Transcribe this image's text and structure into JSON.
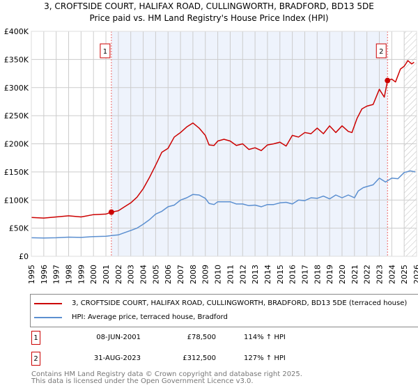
{
  "colors": {
    "property": "#cc0000",
    "hpi": "#5b8fd0",
    "shade": "#eef3fc",
    "grid": "#cccccc"
  },
  "chart_data": {
    "type": "line",
    "title": "3, CROFTSIDE COURT, HALIFAX ROAD, CULLINGWORTH, BRADFORD, BD13 5DE",
    "subtitle": "Price paid vs. HM Land Registry's House Price Index (HPI)",
    "xlim": [
      1995,
      2026
    ],
    "ylim": [
      0,
      400000
    ],
    "x_ticks": [
      "1995",
      "1996",
      "1997",
      "1998",
      "1999",
      "2000",
      "2001",
      "2002",
      "2003",
      "2004",
      "2005",
      "2006",
      "2007",
      "2008",
      "2009",
      "2010",
      "2011",
      "2012",
      "2013",
      "2014",
      "2015",
      "2016",
      "2017",
      "2018",
      "2019",
      "2020",
      "2021",
      "2022",
      "2023",
      "2024",
      "2025",
      "2026"
    ],
    "y_ticks": [
      {
        "v": 0,
        "label": "£0"
      },
      {
        "v": 50000,
        "label": "£50K"
      },
      {
        "v": 100000,
        "label": "£100K"
      },
      {
        "v": 150000,
        "label": "£150K"
      },
      {
        "v": 200000,
        "label": "£200K"
      },
      {
        "v": 250000,
        "label": "£250K"
      },
      {
        "v": 300000,
        "label": "£300K"
      },
      {
        "v": 350000,
        "label": "£350K"
      },
      {
        "v": 400000,
        "label": "£400K"
      }
    ],
    "grid": true,
    "forecast_hatch_from": 2025.0,
    "series": [
      {
        "name": "3, CROFTSIDE COURT, HALIFAX ROAD, CULLINGWORTH, BRADFORD, BD13 5DE (terraced house)",
        "color": "#cc0000",
        "x": [
          1995,
          1996,
          1997,
          1998,
          1999,
          2000,
          2001,
          2001.44,
          2002,
          2002.5,
          2003,
          2003.5,
          2004,
          2004.5,
          2005,
          2005.5,
          2006,
          2006.5,
          2007,
          2007.5,
          2008,
          2008.5,
          2009,
          2009.3,
          2009.7,
          2010,
          2010.5,
          2011,
          2011.5,
          2012,
          2012.5,
          2013,
          2013.5,
          2014,
          2014.5,
          2015,
          2015.5,
          2016,
          2016.5,
          2017,
          2017.5,
          2018,
          2018.5,
          2019,
          2019.5,
          2020,
          2020.5,
          2020.8,
          2021.2,
          2021.6,
          2022,
          2022.5,
          2023,
          2023.4,
          2023.66,
          2024,
          2024.3,
          2024.7,
          2025,
          2025.3,
          2025.6,
          2025.8
        ],
        "y": [
          69000,
          68000,
          70000,
          72000,
          70000,
          74000,
          75000,
          78500,
          81000,
          88000,
          95000,
          105000,
          120000,
          140000,
          162000,
          185000,
          192000,
          212000,
          220000,
          230000,
          237000,
          228000,
          215000,
          198000,
          197000,
          205000,
          208000,
          205000,
          197000,
          200000,
          190000,
          193000,
          188000,
          198000,
          200000,
          203000,
          196000,
          215000,
          212000,
          220000,
          218000,
          228000,
          218000,
          232000,
          220000,
          232000,
          222000,
          220000,
          245000,
          262000,
          267000,
          270000,
          297000,
          283000,
          312500,
          315000,
          310000,
          333000,
          338000,
          348000,
          342000,
          345000
        ]
      },
      {
        "name": "HPI: Average price, terraced house, Bradford",
        "color": "#5b8fd0",
        "x": [
          1995,
          1996,
          1997,
          1998,
          1999,
          2000,
          2001,
          2001.5,
          2002,
          2002.5,
          2003,
          2003.5,
          2004,
          2004.5,
          2005,
          2005.5,
          2006,
          2006.5,
          2007,
          2007.5,
          2008,
          2008.5,
          2009,
          2009.3,
          2009.7,
          2010,
          2010.5,
          2011,
          2011.5,
          2012,
          2012.5,
          2013,
          2013.5,
          2014,
          2014.5,
          2015,
          2015.5,
          2016,
          2016.5,
          2017,
          2017.5,
          2018,
          2018.5,
          2019,
          2019.5,
          2020,
          2020.5,
          2021,
          2021.3,
          2021.7,
          2022,
          2022.5,
          2023,
          2023.5,
          2024,
          2024.5,
          2025,
          2025.5,
          2025.9
        ],
        "y": [
          33000,
          32500,
          33000,
          34000,
          33500,
          35000,
          35500,
          37000,
          38000,
          42000,
          46000,
          50000,
          57000,
          65000,
          75000,
          80000,
          88000,
          91000,
          100000,
          104000,
          110000,
          109000,
          103000,
          94000,
          92000,
          97000,
          97000,
          97000,
          93000,
          93000,
          90000,
          91000,
          88000,
          92000,
          92000,
          95000,
          96000,
          93000,
          100000,
          99000,
          104000,
          103000,
          107000,
          102000,
          109000,
          104000,
          109000,
          104000,
          116000,
          122000,
          124000,
          127000,
          139000,
          132000,
          139000,
          138000,
          149000,
          152000,
          150000
        ]
      }
    ],
    "annotations": [
      {
        "label": "1",
        "x": 2001.44,
        "y": 78500
      },
      {
        "label": "2",
        "x": 2023.66,
        "y": 312500
      }
    ]
  },
  "legend": {
    "property": "3, CROFTSIDE COURT, HALIFAX ROAD, CULLINGWORTH, BRADFORD, BD13 5DE (terraced house)",
    "hpi": "HPI: Average price, terraced house, Bradford"
  },
  "sales": [
    {
      "num": "1",
      "date": "08-JUN-2001",
      "price": "£78,500",
      "hpi": "114% ↑ HPI"
    },
    {
      "num": "2",
      "date": "31-AUG-2023",
      "price": "£312,500",
      "hpi": "127% ↑ HPI"
    }
  ],
  "footer": {
    "line1": "Contains HM Land Registry data © Crown copyright and database right 2025.",
    "line2": "This data is licensed under the Open Government Licence v3.0."
  }
}
